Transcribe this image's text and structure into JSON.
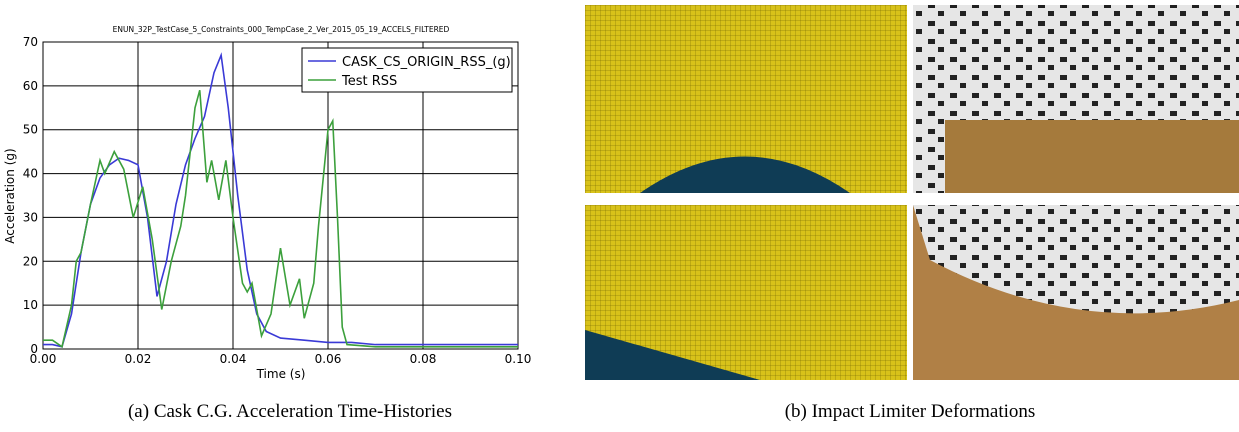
{
  "chart_data": {
    "type": "line",
    "title": "ENUN_32P_TestCase_5_Constraints_000_TempCase_2_Ver_2015_05_19_ACCELS_FILTERED",
    "x_label": "Time (s)",
    "y_label": "Acceleration (g)",
    "xlim": [
      0,
      0.1
    ],
    "ylim": [
      0,
      70
    ],
    "xticks": [
      {
        "value": 0,
        "label": "0.00"
      },
      0.02,
      0.04,
      0.06,
      0.08,
      {
        "value": 0.1,
        "label": "0.10"
      }
    ],
    "yticks": [
      0,
      10,
      20,
      30,
      40,
      50,
      60,
      70
    ],
    "grid": true,
    "legend": "upper right",
    "series": [
      {
        "name": "CASK_CS_ORIGIN_RSS_(g)",
        "color": "#3a3ad6",
        "x": [
          0,
          0.002,
          0.004,
          0.006,
          0.008,
          0.01,
          0.012,
          0.014,
          0.016,
          0.018,
          0.02,
          0.022,
          0.024,
          0.026,
          0.028,
          0.03,
          0.032,
          0.034,
          0.036,
          0.0375,
          0.039,
          0.041,
          0.043,
          0.045,
          0.047,
          0.05,
          0.055,
          0.06,
          0.065,
          0.07,
          0.08,
          0.09,
          0.1
        ],
        "values": [
          1,
          1,
          0.5,
          8,
          22,
          33,
          39,
          42,
          43.5,
          43,
          42,
          30,
          12,
          20,
          33,
          42,
          48,
          53,
          63,
          67,
          55,
          35,
          18,
          8,
          4,
          2.5,
          2,
          1.5,
          1.5,
          1,
          1,
          1,
          1
        ]
      },
      {
        "name": "Test RSS",
        "color": "#3ca03c",
        "x": [
          0,
          0.002,
          0.004,
          0.006,
          0.007,
          0.008,
          0.01,
          0.012,
          0.013,
          0.015,
          0.017,
          0.019,
          0.021,
          0.023,
          0.025,
          0.027,
          0.029,
          0.03,
          0.032,
          0.033,
          0.0345,
          0.0355,
          0.037,
          0.0385,
          0.04,
          0.042,
          0.043,
          0.044,
          0.046,
          0.048,
          0.05,
          0.052,
          0.054,
          0.055,
          0.057,
          0.058,
          0.06,
          0.061,
          0.062,
          0.063,
          0.064,
          0.07,
          0.1
        ],
        "values": [
          2,
          2,
          0.5,
          10,
          20,
          22,
          33,
          43,
          40,
          45,
          41,
          30,
          37,
          25,
          9,
          20,
          28,
          35,
          55,
          59,
          38,
          43,
          34,
          43,
          30,
          15,
          13,
          15,
          3,
          8,
          23,
          10,
          16,
          7,
          15,
          28,
          50,
          52,
          30,
          5,
          1,
          0.5,
          0.5
        ]
      }
    ]
  },
  "captions": [
    "(a) Cask C.G. Acceleration Time-Histories",
    "(b) Impact Limiter Deformations"
  ]
}
